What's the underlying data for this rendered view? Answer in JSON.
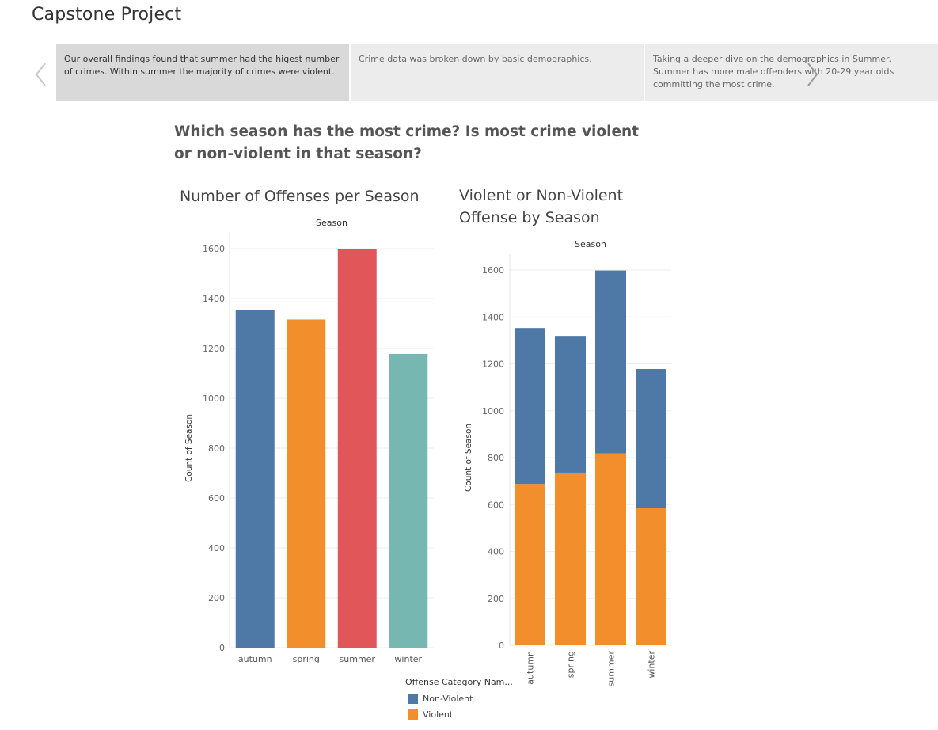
{
  "story": {
    "title": "Capstone Project",
    "points": [
      {
        "text": "Our overall findings found that summer had the higest number of crimes. Within summer the majority of crimes were violent."
      },
      {
        "text": "Crime data was broken down by basic demographics."
      },
      {
        "text": "Taking a deeper dive on the demographics in Summer. Summer has more male offenders with 20-29 year olds committing the most crime."
      }
    ]
  },
  "dashboard": {
    "question": "Which season has the most crime? Is most crime violent or non-violent in that season?"
  },
  "colors": {
    "autumn": "#4e79a7",
    "spring": "#f28e2b",
    "summer": "#e15759",
    "winter": "#76b7b2",
    "non_violent": "#4e79a7",
    "violent": "#f28e2b"
  },
  "chart_data": [
    {
      "type": "bar",
      "title": "Number of Offenses per Season",
      "column_header": "Season",
      "ylabel": "Count of Season",
      "categories": [
        "autumn",
        "spring",
        "summer",
        "winter"
      ],
      "values": [
        1353,
        1316,
        1598,
        1178
      ],
      "ylim": [
        0,
        1600
      ],
      "yticks": [
        0,
        200,
        400,
        600,
        800,
        1000,
        1200,
        1400,
        1600
      ],
      "grid": true
    },
    {
      "type": "bar",
      "stacked": true,
      "title": "Violent or Non-Violent Offense by Season",
      "column_header": "Season",
      "ylabel": "Count of Season",
      "categories": [
        "autumn",
        "spring",
        "summer",
        "winter"
      ],
      "series": [
        {
          "name": "Violent",
          "values": [
            688,
            736,
            818,
            586
          ]
        },
        {
          "name": "Non-Violent",
          "values": [
            665,
            580,
            780,
            592
          ]
        }
      ],
      "ylim": [
        0,
        1600
      ],
      "yticks": [
        0,
        200,
        400,
        600,
        800,
        1000,
        1200,
        1400,
        1600
      ],
      "grid": true,
      "legend": {
        "title": "Offense Category Nam...",
        "position": "bottom-left",
        "items": [
          "Non-Violent",
          "Violent"
        ]
      }
    }
  ]
}
